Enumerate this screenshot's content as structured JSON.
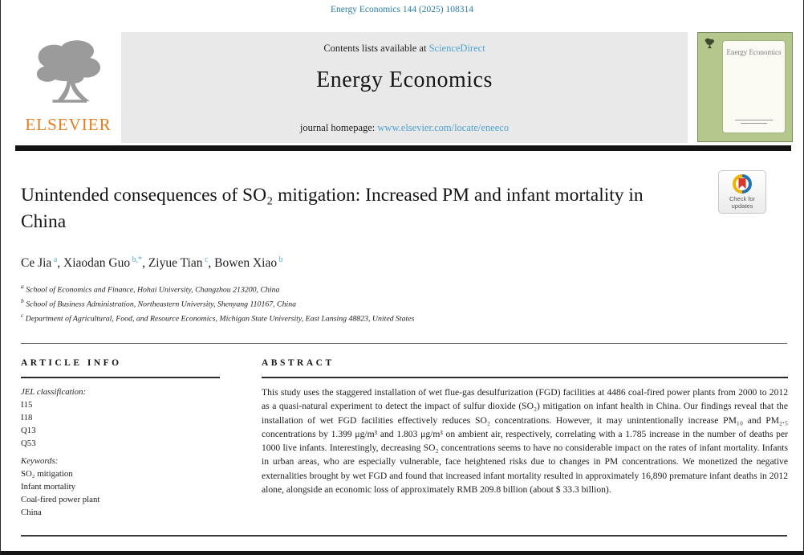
{
  "journal": {
    "citation": "Energy Economics 144 (2025) 108314",
    "contents_line": "Contents lists available at",
    "sciencedirect_link": "ScienceDirect",
    "name": "Energy Economics",
    "homepage_label": "journal homepage:",
    "homepage_url": "www.elsevier.com/locate/eneeco",
    "publisher": "ELSEVIER",
    "cover_title": "Energy Economics"
  },
  "badge": {
    "label": "Check for updates"
  },
  "article": {
    "title": "Unintended consequences of SO₂ mitigation: Increased PM and infant mortality in China",
    "authors": [
      {
        "name": "Ce Jia",
        "sup": "a"
      },
      {
        "name": "Xiaodan Guo",
        "sup": "b,*"
      },
      {
        "name": "Ziyue Tian",
        "sup": "c"
      },
      {
        "name": "Bowen Xiao",
        "sup": "b"
      }
    ],
    "affiliations": [
      {
        "sup": "a",
        "text": "School of Economics and Finance, Hohai University, Changzhou 213200, China"
      },
      {
        "sup": "b",
        "text": "School of Business Administration, Northeastern University, Shenyang 110167, China"
      },
      {
        "sup": "c",
        "text": "Department of Agricultural, Food, and Resource Economics, Michigan State University, East Lansing 48823, United States"
      }
    ]
  },
  "article_info": {
    "heading": "ARTICLE INFO",
    "jel_label": "JEL classification:",
    "jel_codes": [
      "I15",
      "I18",
      "Q13",
      "Q53"
    ],
    "keywords_label": "Keywords:",
    "keywords": [
      "SO₂ mitigation",
      "Infant mortality",
      "Coal-fired power plant",
      "China"
    ]
  },
  "abstract": {
    "heading": "ABSTRACT",
    "text": "This study uses the staggered installation of wet flue-gas desulfurization (FGD) facilities at 4486 coal-fired power plants from 2000 to 2012 as a quasi-natural experiment to detect the impact of sulfur dioxide (SO₂) mitigation on infant health in China. Our findings reveal that the installation of wet FGD facilities effectively reduces SO₂ concentrations. However, it may unintentionally increase PM₁₀ and PM₂.₅ concentrations by 1.399 μg/m³ and 1.803 μg/m³ on ambient air, respectively, correlating with a 1.785 increase in the number of deaths per 1000 live infants. Interestingly, decreasing SO₂ concentrations seems to have no considerable impact on the rates of infant mortality. Infants in urban areas, who are especially vulnerable, face heightened risks due to changes in PM concentrations. We monetized the negative externalities brought by wet FGD and found that increased infant mortality resulted in approximately 16,890 premature infant deaths in 2012 alone, alongside an economic loss of approximately RMB 209.8 billion (about $ 33.3 billion)."
  },
  "colors": {
    "link_blue": "#4da3d4",
    "citation_teal": "#2b7ca6",
    "elsevier_orange": "#e87d1e",
    "cover_green": "#b5c78c"
  }
}
